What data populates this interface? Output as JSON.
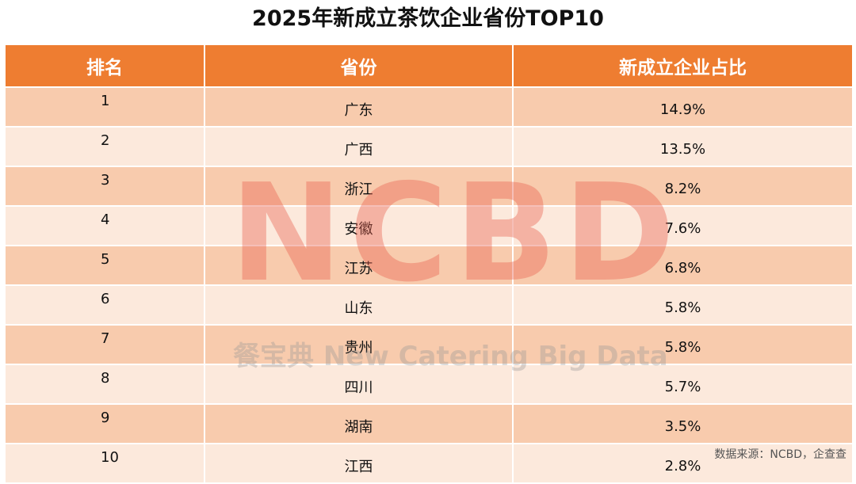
{
  "title": "2025年新成立茶饮企业省份TOP10",
  "table": {
    "headers": [
      "排名",
      "省份",
      "新成立企业占比"
    ],
    "rows": [
      {
        "rank": "1",
        "province": "广东",
        "share": "14.9%"
      },
      {
        "rank": "2",
        "province": "广西",
        "share": "13.5%"
      },
      {
        "rank": "3",
        "province": "浙江",
        "share": "8.2%"
      },
      {
        "rank": "4",
        "province": "安徽",
        "share": "7.6%"
      },
      {
        "rank": "5",
        "province": "江苏",
        "share": "6.8%"
      },
      {
        "rank": "6",
        "province": "山东",
        "share": "5.8%"
      },
      {
        "rank": "7",
        "province": "贵州",
        "share": "5.8%"
      },
      {
        "rank": "8",
        "province": "四川",
        "share": "5.7%"
      },
      {
        "rank": "9",
        "province": "湖南",
        "share": "3.5%"
      },
      {
        "rank": "10",
        "province": "江西",
        "share": "2.8%"
      }
    ]
  },
  "watermark": {
    "logo_text": "NCBD",
    "tagline": "餐宝典 New Catering Big Data"
  },
  "source": "数据来源：NCBD，企查查",
  "colors": {
    "header_bg": "#ee7d31",
    "row_odd": "#f8cbad",
    "row_even": "#fce9dc"
  }
}
